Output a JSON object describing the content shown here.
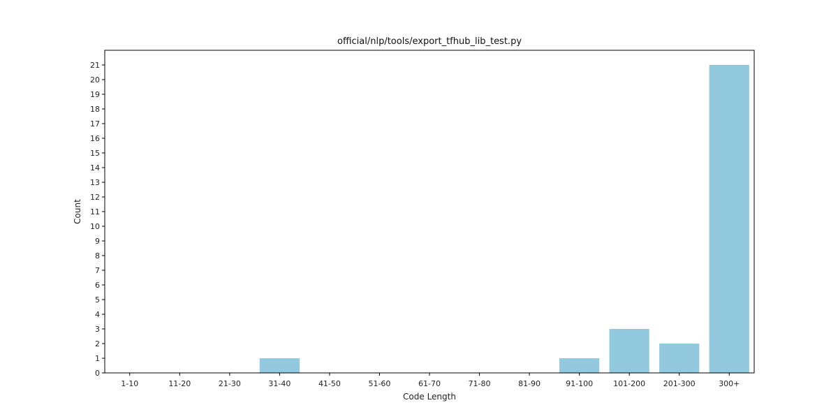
{
  "chart_data": {
    "type": "bar",
    "title": "official/nlp/tools/export_tfhub_lib_test.py",
    "xlabel": "Code Length",
    "ylabel": "Count",
    "categories": [
      "1-10",
      "11-20",
      "21-30",
      "31-40",
      "41-50",
      "51-60",
      "61-70",
      "71-80",
      "81-90",
      "91-100",
      "101-200",
      "201-300",
      "300+"
    ],
    "values": [
      0,
      0,
      0,
      1,
      0,
      0,
      0,
      0,
      0,
      1,
      3,
      2,
      21
    ],
    "ylim": [
      0,
      22
    ],
    "yticks": [
      0,
      1,
      2,
      3,
      4,
      5,
      6,
      7,
      8,
      9,
      10,
      11,
      12,
      13,
      14,
      15,
      16,
      17,
      18,
      19,
      20,
      21
    ],
    "grid": false,
    "legend": "none",
    "bar_color": "#92c9df"
  }
}
